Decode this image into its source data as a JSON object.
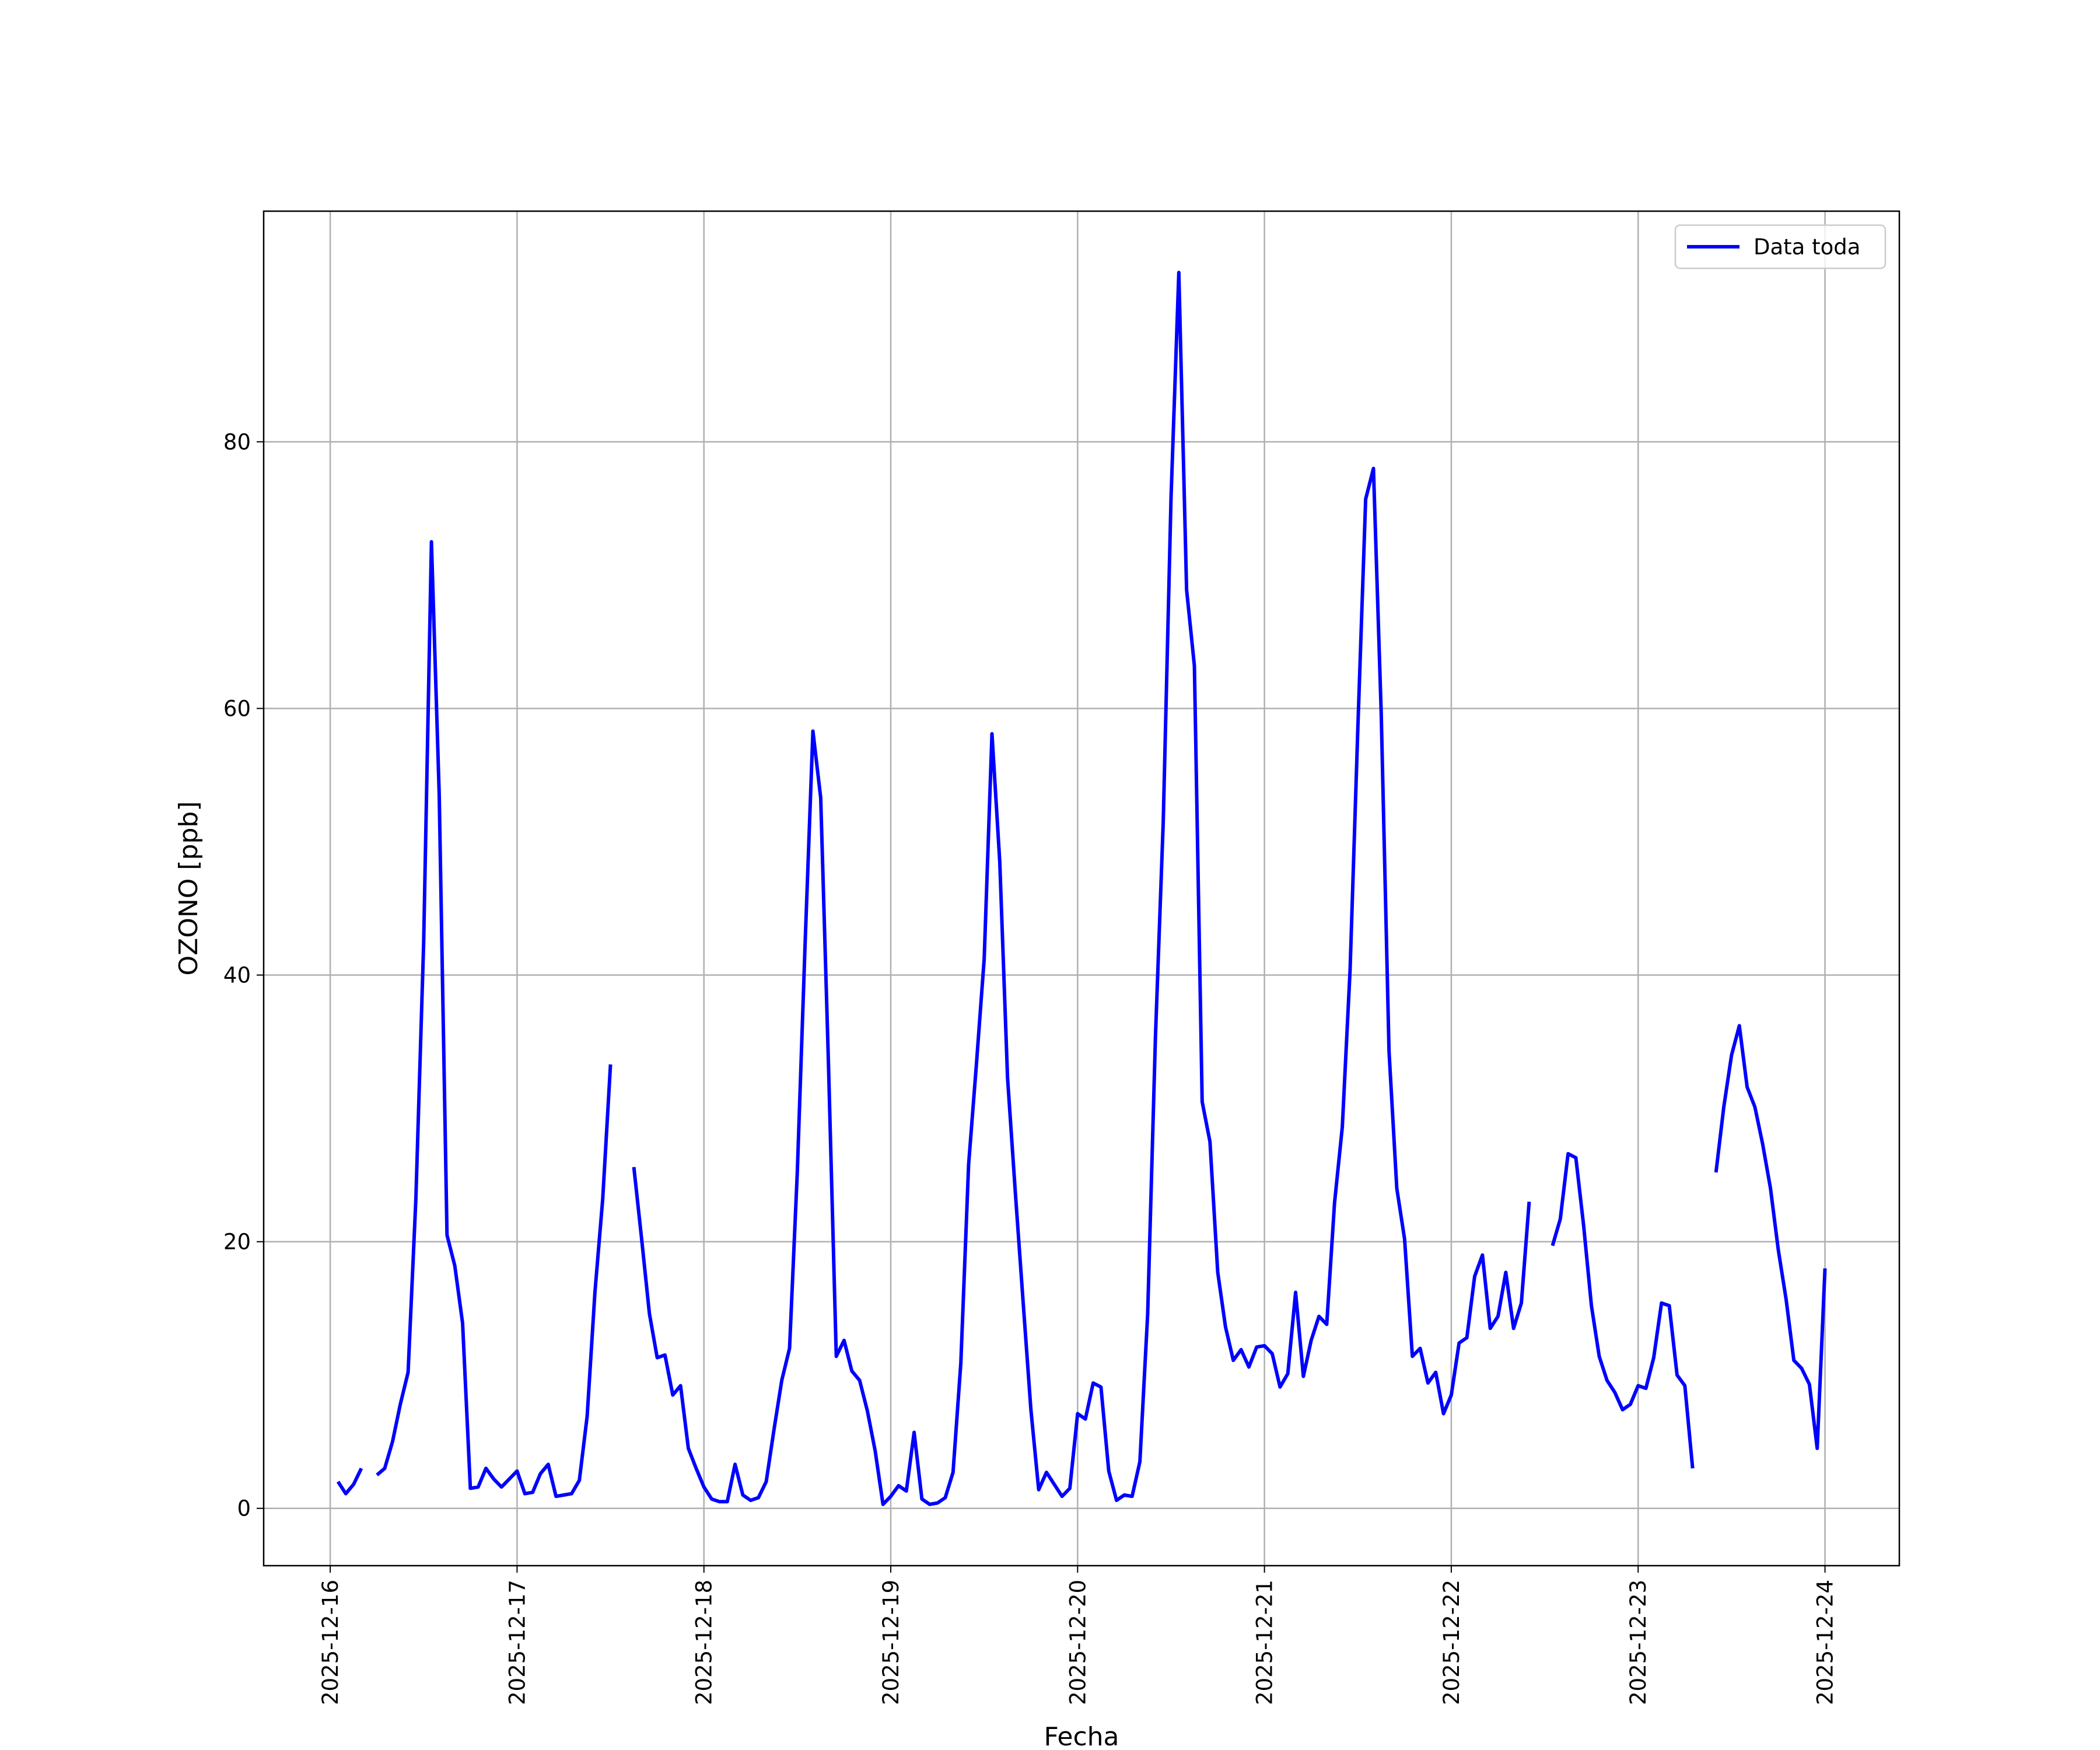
{
  "chart_data": {
    "type": "line",
    "xlabel": "Fecha",
    "ylabel": "OZONO [ppb]",
    "x": [
      "2025-12-16T01:00",
      "2025-12-16T02:00",
      "2025-12-16T03:00",
      "2025-12-16T04:00",
      "2025-12-16T05:00",
      "2025-12-16T06:00",
      "2025-12-16T07:00",
      "2025-12-16T08:00",
      "2025-12-16T09:00",
      "2025-12-16T10:00",
      "2025-12-16T11:00",
      "2025-12-16T12:00",
      "2025-12-16T13:00",
      "2025-12-16T14:00",
      "2025-12-16T15:00",
      "2025-12-16T16:00",
      "2025-12-16T17:00",
      "2025-12-16T18:00",
      "2025-12-16T19:00",
      "2025-12-16T20:00",
      "2025-12-16T21:00",
      "2025-12-16T22:00",
      "2025-12-16T23:00",
      "2025-12-17T00:00",
      "2025-12-17T01:00",
      "2025-12-17T02:00",
      "2025-12-17T03:00",
      "2025-12-17T04:00",
      "2025-12-17T05:00",
      "2025-12-17T06:00",
      "2025-12-17T07:00",
      "2025-12-17T08:00",
      "2025-12-17T09:00",
      "2025-12-17T10:00",
      "2025-12-17T11:00",
      "2025-12-17T12:00",
      "2025-12-17T13:00",
      "2025-12-17T14:00",
      "2025-12-17T15:00",
      "2025-12-17T16:00",
      "2025-12-17T17:00",
      "2025-12-17T18:00",
      "2025-12-17T19:00",
      "2025-12-17T20:00",
      "2025-12-17T21:00",
      "2025-12-17T22:00",
      "2025-12-17T23:00",
      "2025-12-18T00:00",
      "2025-12-18T01:00",
      "2025-12-18T02:00",
      "2025-12-18T03:00",
      "2025-12-18T04:00",
      "2025-12-18T05:00",
      "2025-12-18T06:00",
      "2025-12-18T07:00",
      "2025-12-18T08:00",
      "2025-12-18T09:00",
      "2025-12-18T10:00",
      "2025-12-18T11:00",
      "2025-12-18T12:00",
      "2025-12-18T13:00",
      "2025-12-18T14:00",
      "2025-12-18T15:00",
      "2025-12-18T16:00",
      "2025-12-18T17:00",
      "2025-12-18T18:00",
      "2025-12-18T19:00",
      "2025-12-18T20:00",
      "2025-12-18T21:00",
      "2025-12-18T22:00",
      "2025-12-18T23:00",
      "2025-12-19T00:00",
      "2025-12-19T01:00",
      "2025-12-19T02:00",
      "2025-12-19T03:00",
      "2025-12-19T04:00",
      "2025-12-19T05:00",
      "2025-12-19T06:00",
      "2025-12-19T07:00",
      "2025-12-19T08:00",
      "2025-12-19T09:00",
      "2025-12-19T10:00",
      "2025-12-19T11:00",
      "2025-12-19T12:00",
      "2025-12-19T13:00",
      "2025-12-19T14:00",
      "2025-12-19T15:00",
      "2025-12-19T16:00",
      "2025-12-19T17:00",
      "2025-12-19T18:00",
      "2025-12-19T19:00",
      "2025-12-19T20:00",
      "2025-12-19T21:00",
      "2025-12-19T22:00",
      "2025-12-19T23:00",
      "2025-12-20T00:00",
      "2025-12-20T01:00",
      "2025-12-20T02:00",
      "2025-12-20T03:00",
      "2025-12-20T04:00",
      "2025-12-20T05:00",
      "2025-12-20T06:00",
      "2025-12-20T07:00",
      "2025-12-20T08:00",
      "2025-12-20T09:00",
      "2025-12-20T10:00",
      "2025-12-20T11:00",
      "2025-12-20T12:00",
      "2025-12-20T13:00",
      "2025-12-20T14:00",
      "2025-12-20T15:00",
      "2025-12-20T16:00",
      "2025-12-20T17:00",
      "2025-12-20T18:00",
      "2025-12-20T19:00",
      "2025-12-20T20:00",
      "2025-12-20T21:00",
      "2025-12-20T22:00",
      "2025-12-20T23:00",
      "2025-12-21T00:00",
      "2025-12-21T01:00",
      "2025-12-21T02:00",
      "2025-12-21T03:00",
      "2025-12-21T04:00",
      "2025-12-21T05:00",
      "2025-12-21T06:00",
      "2025-12-21T07:00",
      "2025-12-21T08:00",
      "2025-12-21T09:00",
      "2025-12-21T10:00",
      "2025-12-21T11:00",
      "2025-12-21T12:00",
      "2025-12-21T13:00",
      "2025-12-21T14:00",
      "2025-12-21T15:00",
      "2025-12-21T16:00",
      "2025-12-21T17:00",
      "2025-12-21T18:00",
      "2025-12-21T19:00",
      "2025-12-21T20:00",
      "2025-12-21T21:00",
      "2025-12-21T22:00",
      "2025-12-21T23:00",
      "2025-12-22T00:00",
      "2025-12-22T01:00",
      "2025-12-22T02:00",
      "2025-12-22T03:00",
      "2025-12-22T04:00",
      "2025-12-22T05:00",
      "2025-12-22T06:00",
      "2025-12-22T07:00",
      "2025-12-22T08:00",
      "2025-12-22T09:00",
      "2025-12-22T10:00",
      "2025-12-22T11:00",
      "2025-12-22T12:00",
      "2025-12-22T13:00",
      "2025-12-22T14:00",
      "2025-12-22T15:00",
      "2025-12-22T16:00",
      "2025-12-22T17:00",
      "2025-12-22T18:00",
      "2025-12-22T19:00",
      "2025-12-22T20:00",
      "2025-12-22T21:00",
      "2025-12-22T22:00",
      "2025-12-22T23:00",
      "2025-12-23T00:00",
      "2025-12-23T01:00",
      "2025-12-23T02:00",
      "2025-12-23T03:00",
      "2025-12-23T04:00",
      "2025-12-23T05:00",
      "2025-12-23T06:00",
      "2025-12-23T07:00",
      "2025-12-23T08:00",
      "2025-12-23T09:00",
      "2025-12-23T10:00",
      "2025-12-23T11:00",
      "2025-12-23T12:00",
      "2025-12-23T13:00",
      "2025-12-23T14:00",
      "2025-12-23T15:00",
      "2025-12-23T16:00",
      "2025-12-23T17:00",
      "2025-12-23T18:00",
      "2025-12-23T19:00",
      "2025-12-23T20:00",
      "2025-12-23T21:00",
      "2025-12-23T22:00",
      "2025-12-23T23:00",
      "2025-12-24T00:00"
    ],
    "series": [
      {
        "name": "Data toda",
        "color": "#0000ff",
        "values": [
          2.0,
          1.1,
          1.8,
          3.0,
          null,
          2.5,
          3.0,
          5.0,
          7.8,
          10.2,
          23.2,
          42.4,
          72.5,
          53.5,
          20.5,
          18.2,
          13.9,
          1.5,
          1.6,
          3.0,
          2.2,
          1.6,
          2.2,
          2.8,
          1.1,
          1.2,
          2.6,
          3.3,
          0.9,
          1.0,
          1.1,
          2.1,
          6.9,
          16.2,
          23.2,
          33.3,
          null,
          null,
          25.6,
          20.2,
          14.6,
          11.3,
          11.5,
          8.5,
          9.2,
          4.5,
          3.0,
          1.6,
          0.7,
          0.5,
          0.5,
          3.3,
          1.0,
          0.6,
          0.8,
          2.0,
          5.9,
          9.6,
          12.0,
          25.3,
          42.4,
          58.3,
          53.3,
          33.3,
          11.4,
          12.6,
          10.3,
          9.6,
          7.3,
          4.3,
          0.3,
          0.9,
          1.7,
          1.3,
          5.7,
          0.7,
          0.3,
          0.4,
          0.8,
          2.7,
          10.9,
          25.8,
          33.3,
          41.2,
          58.1,
          48.5,
          32.3,
          23.7,
          15.5,
          7.4,
          1.4,
          2.7,
          1.8,
          0.9,
          1.5,
          7.1,
          6.7,
          9.4,
          9.1,
          2.8,
          0.6,
          1.0,
          0.9,
          3.5,
          14.6,
          35.4,
          51.5,
          75.8,
          92.7,
          68.9,
          63.2,
          30.5,
          27.5,
          17.7,
          13.6,
          11.1,
          11.9,
          10.6,
          12.1,
          12.2,
          11.6,
          9.1,
          10.1,
          16.2,
          9.9,
          12.6,
          14.4,
          13.8,
          22.9,
          28.6,
          40.4,
          58.6,
          75.7,
          78.0,
          59.6,
          34.3,
          24.0,
          20.2,
          11.4,
          12.0,
          9.4,
          10.2,
          7.1,
          8.5,
          12.4,
          12.8,
          17.4,
          19.0,
          13.5,
          14.4,
          17.7,
          13.5,
          15.4,
          23.0,
          null,
          null,
          19.7,
          21.7,
          26.6,
          26.3,
          21.2,
          15.2,
          11.4,
          9.6,
          8.7,
          7.4,
          7.8,
          9.2,
          9.0,
          11.3,
          15.4,
          15.2,
          10.0,
          9.2,
          3.0,
          null,
          null,
          25.2,
          30.1,
          34.0,
          36.2,
          31.6,
          30.1,
          27.3,
          24.0,
          19.4,
          15.7,
          11.1,
          10.5,
          9.3,
          4.5,
          18.0
        ]
      }
    ],
    "xlim": [
      "2025-12-15T15:27",
      "2025-12-24T09:33"
    ],
    "xticks": [
      "2025-12-16",
      "2025-12-17",
      "2025-12-18",
      "2025-12-19",
      "2025-12-20",
      "2025-12-21",
      "2025-12-22",
      "2025-12-23",
      "2025-12-24"
    ],
    "ylim": [
      -4.3,
      97.3
    ],
    "yticks": [
      0,
      20,
      40,
      60,
      80
    ],
    "grid": true,
    "legend": "upper right"
  }
}
